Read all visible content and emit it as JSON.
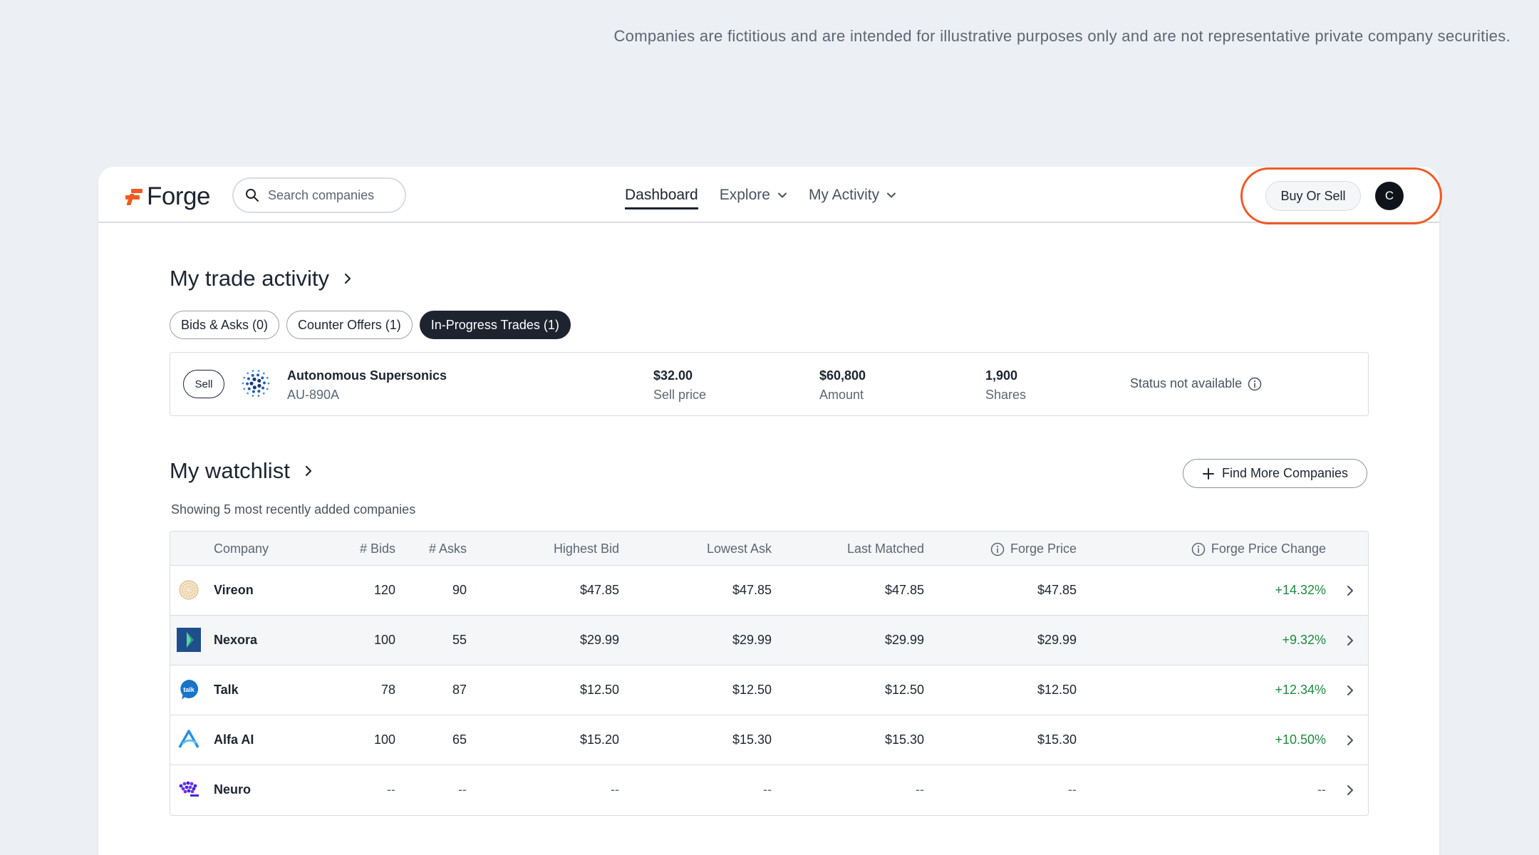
{
  "disclaimer": "Companies are fictitious and are intended for illustrative purposes only and are not representative private company securities.",
  "header": {
    "logo_text": "Forge",
    "search_placeholder": "Search companies",
    "nav": [
      {
        "label": "Dashboard",
        "active": true
      },
      {
        "label": "Explore",
        "dropdown": true
      },
      {
        "label": "My Activity",
        "dropdown": true
      }
    ],
    "buy_sell_label": "Buy Or Sell",
    "avatar_initial": "C"
  },
  "trade_activity": {
    "title": "My trade activity",
    "tabs": [
      {
        "label": "Bids & Asks (0)"
      },
      {
        "label": "Counter Offers (1)"
      },
      {
        "label": "In-Progress Trades (1)",
        "active": true
      }
    ],
    "trade": {
      "side": "Sell",
      "company": "Autonomous Supersonics",
      "ticker": "AU-890A",
      "price_value": "$32.00",
      "price_label": "Sell price",
      "amount_value": "$60,800",
      "amount_label": "Amount",
      "shares_value": "1,900",
      "shares_label": "Shares",
      "status": "Status not available"
    }
  },
  "watchlist": {
    "title": "My watchlist",
    "find_more_label": "Find More Companies",
    "subtitle": "Showing 5 most recently added companies",
    "columns": [
      "Company",
      "# Bids",
      "# Asks",
      "Highest Bid",
      "Lowest Ask",
      "Last Matched",
      "Forge Price",
      "Forge Price Change"
    ],
    "rows": [
      {
        "company": "Vireon",
        "bids": "120",
        "asks": "90",
        "highest_bid": "$47.85",
        "lowest_ask": "$47.85",
        "last_matched": "$47.85",
        "forge_price": "$47.85",
        "change": "+14.32%"
      },
      {
        "company": "Nexora",
        "bids": "100",
        "asks": "55",
        "highest_bid": "$29.99",
        "lowest_ask": "$29.99",
        "last_matched": "$29.99",
        "forge_price": "$29.99",
        "change": "+9.32%"
      },
      {
        "company": "Talk",
        "bids": "78",
        "asks": "87",
        "highest_bid": "$12.50",
        "lowest_ask": "$12.50",
        "last_matched": "$12.50",
        "forge_price": "$12.50",
        "change": "+12.34%"
      },
      {
        "company": "Alfa AI",
        "bids": "100",
        "asks": "65",
        "highest_bid": "$15.20",
        "lowest_ask": "$15.30",
        "last_matched": "$15.30",
        "forge_price": "$15.30",
        "change": "+10.50%"
      },
      {
        "company": "Neuro",
        "bids": "--",
        "asks": "--",
        "highest_bid": "--",
        "lowest_ask": "--",
        "last_matched": "--",
        "forge_price": "--",
        "change": "--"
      }
    ]
  },
  "colors": {
    "accent": "#ef5a24",
    "positive": "#1e8a3e",
    "dark": "#1d2430"
  }
}
